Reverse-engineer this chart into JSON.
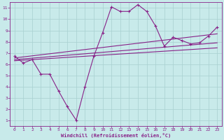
{
  "xlabel": "Windchill (Refroidissement éolien,°C)",
  "background_color": "#c8eaea",
  "grid_color": "#a8d0d0",
  "line_color": "#882288",
  "xlim": [
    -0.5,
    23.5
  ],
  "ylim": [
    0.5,
    11.5
  ],
  "xticks": [
    1,
    2,
    3,
    4,
    5,
    6,
    7,
    8,
    9,
    10,
    11,
    12,
    13,
    14,
    15,
    16,
    17,
    18,
    19,
    20,
    21,
    22,
    23
  ],
  "yticks": [
    1,
    2,
    3,
    4,
    5,
    6,
    7,
    8,
    9,
    10,
    11
  ],
  "main_x": [
    0,
    1,
    2,
    3,
    4,
    5,
    6,
    7,
    8,
    9,
    10,
    11,
    12,
    13,
    14,
    15,
    16,
    17,
    18,
    19,
    20,
    21,
    22,
    23
  ],
  "main_y": [
    6.7,
    6.1,
    6.4,
    5.1,
    5.1,
    3.6,
    2.2,
    1.0,
    4.0,
    6.7,
    8.8,
    11.1,
    10.7,
    10.7,
    11.3,
    10.7,
    9.4,
    7.6,
    8.4,
    8.1,
    7.8,
    7.9,
    8.5,
    9.3
  ],
  "line1_x": [
    0,
    23
  ],
  "line1_y": [
    6.55,
    8.7
  ],
  "line2_x": [
    0,
    23
  ],
  "line2_y": [
    6.4,
    7.9
  ],
  "line3_x": [
    0,
    23
  ],
  "line3_y": [
    6.3,
    7.45
  ]
}
